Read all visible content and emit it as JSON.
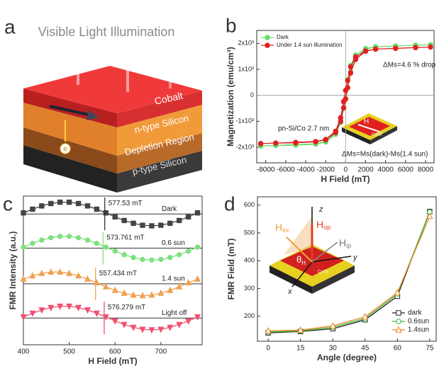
{
  "panel_a": {
    "panel_label": "a",
    "title": "Visible Light Illumination",
    "layers": [
      "Cobalt",
      "n-type Silicon",
      "Depletion Region",
      "p-type Silicon"
    ],
    "electron": "e"
  },
  "chart_data": [
    {
      "type": "line",
      "panel_label": "b",
      "xlabel": "H Field (mT)",
      "ylabel": "Magnetization (emu/cm³)",
      "x": [
        -8500,
        -7000,
        -5000,
        -3000,
        -2000,
        -1000,
        -500,
        -200,
        0,
        200,
        500,
        1000,
        2000,
        3000,
        5000,
        7000,
        8500,
        7000,
        5000,
        3000,
        2000,
        1000,
        500,
        200,
        0,
        -200,
        -500,
        -1000,
        -2000,
        -3000,
        -5000,
        -7000,
        -8500
      ],
      "series": [
        {
          "name": "Dark",
          "color": "#66dd66",
          "marker": "circle",
          "marker_filled": true,
          "values": [
            -1950,
            -1930,
            -1920,
            -1880,
            -1800,
            -1500,
            -1050,
            -500,
            -150,
            300,
            900,
            1450,
            1780,
            1870,
            1900,
            1930,
            1950,
            1930,
            1900,
            1870,
            1800,
            1550,
            1150,
            600,
            200,
            -250,
            -900,
            -1450,
            -1780,
            -1870,
            -1900,
            -1930,
            -1950
          ]
        },
        {
          "name": "Under 1.4 sun illumination",
          "color": "#e02020",
          "marker": "circle",
          "marker_filled": true,
          "values": [
            -1860,
            -1840,
            -1830,
            -1790,
            -1710,
            -1430,
            -1000,
            -480,
            -140,
            290,
            860,
            1380,
            1700,
            1780,
            1810,
            1840,
            1860,
            1840,
            1810,
            1780,
            1710,
            1480,
            1100,
            570,
            190,
            -240,
            -860,
            -1380,
            -1700,
            -1780,
            -1810,
            -1840,
            -1860
          ]
        }
      ],
      "xlim": [
        -8900,
        8850
      ],
      "xticks": [
        -8000,
        -6000,
        -4000,
        -2000,
        0,
        2000,
        4000,
        6000,
        8000
      ],
      "ylim": [
        -2600,
        2500
      ],
      "yticks": [
        {
          "value": 2000,
          "label": "2x10³"
        },
        {
          "value": 1000,
          "label": "1x10³"
        },
        0,
        {
          "value": -1000,
          "label": "-1x10³"
        },
        {
          "value": -2000,
          "label": "-2x10³"
        }
      ],
      "zero_lines": true,
      "legend": "upper left",
      "annotations": [
        "ΔMs=4.6 % drop",
        "pn-Si/Co 2.7 nm",
        "ΔMs=Ms(dark)-Ms(1.4 sun)"
      ],
      "inset": [
        "H",
        "Co/Si"
      ]
    },
    {
      "type": "line",
      "panel_label": "c",
      "xlabel": "H Field (mT)",
      "ylabel": "FMR Intensity (a.u.)",
      "x": [
        400,
        420,
        440,
        460,
        480,
        500,
        520,
        540,
        560,
        580,
        600,
        620,
        640,
        660,
        680,
        700,
        720,
        740,
        760,
        780
      ],
      "series": [
        {
          "name": "Dark",
          "color": "#444444",
          "marker": "square",
          "marker_filled": true,
          "baseline": 8.8,
          "resonance_field": 577.53,
          "resonance_label": "577.53 mT",
          "values": [
            8.87,
            9.12,
            9.34,
            9.5,
            9.59,
            9.59,
            9.5,
            9.34,
            9.12,
            8.87,
            8.6,
            8.36,
            8.17,
            8.04,
            8.0,
            8.04,
            8.17,
            8.36,
            8.6,
            8.87
          ]
        },
        {
          "name": "0.6 sun",
          "color": "#7fe07f",
          "marker": "circle",
          "marker_filled": true,
          "baseline": 6.5,
          "resonance_field": 573.761,
          "resonance_label": "573.761 mT",
          "values": [
            6.57,
            6.82,
            7.04,
            7.2,
            7.29,
            7.29,
            7.2,
            7.04,
            6.82,
            6.57,
            6.3,
            6.06,
            5.87,
            5.74,
            5.7,
            5.74,
            5.87,
            6.06,
            6.3,
            6.57
          ]
        },
        {
          "name": "1.4 sun",
          "color": "#f0a050",
          "marker": "triangle",
          "marker_filled": true,
          "baseline": 4.1,
          "resonance_field": 557.434,
          "resonance_label": "557.434 mT",
          "values": [
            4.42,
            4.64,
            4.8,
            4.89,
            4.89,
            4.8,
            4.64,
            4.42,
            4.17,
            3.9,
            3.66,
            3.47,
            3.34,
            3.3,
            3.34,
            3.47,
            3.66,
            3.9,
            4.17,
            4.42
          ]
        },
        {
          "name": "Light off",
          "color": "#f05070",
          "marker": "triangle-down",
          "marker_filled": true,
          "baseline": 1.8,
          "resonance_field": 576.279,
          "resonance_label": "576.279 mT",
          "values": [
            1.87,
            2.12,
            2.34,
            2.5,
            2.59,
            2.59,
            2.5,
            2.34,
            2.12,
            1.87,
            1.6,
            1.36,
            1.17,
            1.04,
            1.0,
            1.04,
            1.17,
            1.36,
            1.6,
            1.87
          ]
        }
      ],
      "xlim": [
        400,
        790
      ],
      "xticks": [
        400,
        500,
        600,
        700
      ],
      "ylim": [
        0,
        10
      ]
    },
    {
      "type": "line",
      "panel_label": "d",
      "xlabel": "Angle (degree)",
      "ylabel": "FMR Field (mT)",
      "x": [
        0,
        15,
        30,
        45,
        60,
        75
      ],
      "series": [
        {
          "name": "dark",
          "color": "#222222",
          "marker": "square",
          "marker_filled": false,
          "values": [
            140,
            145,
            155,
            187,
            272,
            577
          ]
        },
        {
          "name": "0.6sun",
          "color": "#3cb83c",
          "marker": "circle",
          "marker_filled": false,
          "values": [
            143,
            147,
            160,
            192,
            280,
            575
          ]
        },
        {
          "name": "1.4sun",
          "color": "#f08020",
          "marker": "triangle",
          "marker_filled": false,
          "values": [
            147,
            150,
            165,
            198,
            285,
            560
          ]
        }
      ],
      "xlim": [
        -5,
        78
      ],
      "xticks": [
        0,
        15,
        30,
        45,
        60,
        75
      ],
      "ylim": [
        110,
        630
      ],
      "yticks": [
        200,
        300,
        400,
        500,
        600
      ],
      "legend": "lower right",
      "inset": {
        "z": "z",
        "h_op": [
          "H",
          "op"
        ],
        "h_ex": [
          "H",
          "ex"
        ],
        "h_ip": [
          "H",
          "ip"
        ],
        "theta": [
          "θ",
          "H"
        ],
        "x": "x",
        "y": "y",
        "sample": "Co/Si"
      }
    }
  ]
}
